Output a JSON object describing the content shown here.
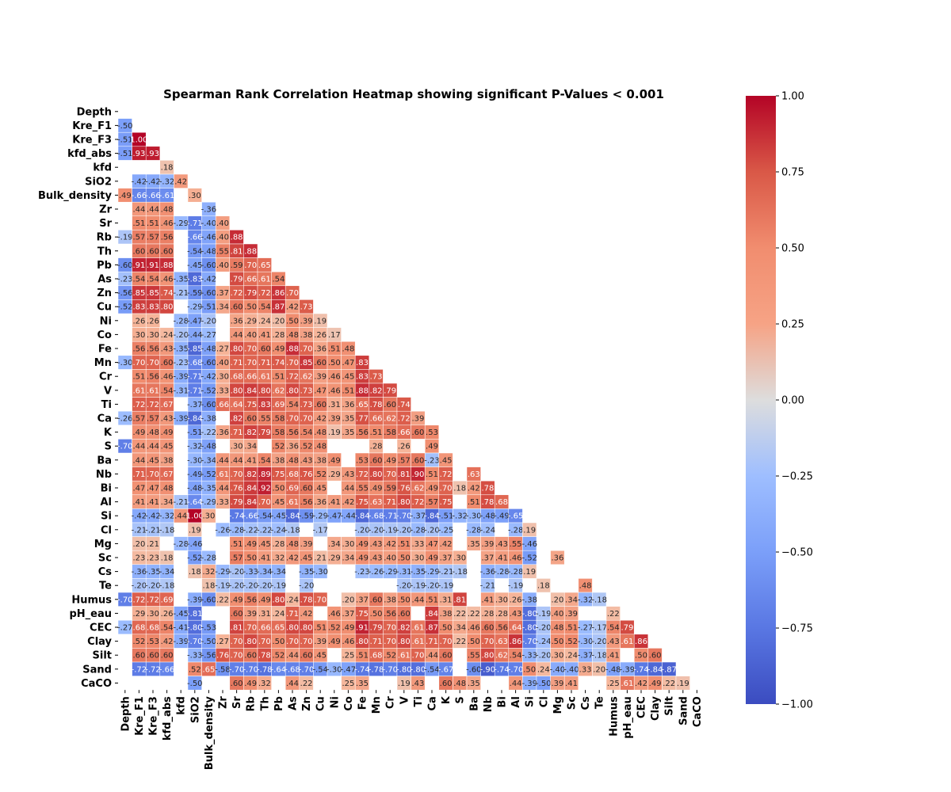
{
  "chart_data": {
    "type": "heatmap",
    "title": "Spearman Rank Correlation Heatmap showing significant P-Values < 0.001",
    "variables": [
      "Depth",
      "Kre_F1",
      "Kre_F3",
      "kfd_abs",
      "kfd",
      "SiO2",
      "Bulk_density",
      "Zr",
      "Sr",
      "Rb",
      "Th",
      "Pb",
      "As",
      "Zn",
      "Cu",
      "Ni",
      "Co",
      "Fe",
      "Mn",
      "Cr",
      "V",
      "Ti",
      "Ca",
      "K",
      "S",
      "Ba",
      "Nb",
      "Bi",
      "Al",
      "Si",
      "Cl",
      "Mg",
      "Sc",
      "Cs",
      "Te",
      "Humus",
      "pH_eau",
      "CEC",
      "Clay",
      "Silt",
      "Sand",
      "CaCO"
    ],
    "mask": "upper-triangle",
    "colormap": "coolwarm",
    "vmin": -1,
    "vmax": 1,
    "colorbar_ticks": [
      "1.00",
      "0.75",
      "0.50",
      "0.25",
      "0.00",
      "−0.25",
      "−0.50",
      "−0.75",
      "−1.00"
    ],
    "colorbar_tick_values": [
      1.0,
      0.75,
      0.5,
      0.25,
      0.0,
      -0.25,
      -0.5,
      -0.75,
      -1.0
    ],
    "value_format": "2dp-no-leading-zero",
    "rows": [
      [],
      [
        -0.5
      ],
      [
        -0.51,
        1.0
      ],
      [
        -0.51,
        0.93,
        0.93
      ],
      [
        null,
        null,
        null,
        0.18
      ],
      [
        null,
        -0.42,
        -0.42,
        -0.32,
        0.42
      ],
      [
        0.49,
        -0.66,
        -0.66,
        -0.61,
        null,
        0.3
      ],
      [
        null,
        0.44,
        0.44,
        0.48,
        null,
        null,
        -0.36
      ],
      [
        null,
        0.51,
        0.51,
        0.46,
        -0.29,
        -0.71,
        -0.4,
        0.4
      ],
      [
        -0.19,
        0.57,
        0.57,
        0.56,
        null,
        -0.66,
        -0.46,
        0.4,
        0.88
      ],
      [
        null,
        0.6,
        0.6,
        0.6,
        null,
        -0.54,
        -0.48,
        0.55,
        0.81,
        0.88
      ],
      [
        -0.6,
        0.91,
        0.91,
        0.88,
        null,
        -0.45,
        -0.6,
        0.4,
        0.59,
        0.7,
        0.65
      ],
      [
        -0.23,
        0.54,
        0.54,
        0.46,
        -0.35,
        -0.83,
        -0.42,
        null,
        0.79,
        0.66,
        0.61,
        0.54
      ],
      [
        -0.56,
        0.85,
        0.85,
        0.74,
        -0.21,
        -0.59,
        -0.6,
        0.37,
        0.72,
        0.79,
        0.72,
        0.86,
        0.7
      ],
      [
        -0.52,
        0.83,
        0.83,
        0.8,
        null,
        -0.29,
        -0.51,
        0.34,
        0.6,
        0.5,
        0.54,
        0.87,
        0.42,
        0.73
      ],
      [
        null,
        0.26,
        0.26,
        null,
        -0.28,
        -0.47,
        -0.2,
        null,
        0.36,
        0.29,
        0.24,
        0.2,
        0.5,
        0.39,
        0.19
      ],
      [
        null,
        0.3,
        0.3,
        0.24,
        -0.2,
        -0.44,
        -0.27,
        null,
        0.44,
        0.4,
        0.41,
        0.28,
        0.48,
        0.38,
        0.26,
        0.17
      ],
      [
        null,
        0.56,
        0.56,
        0.43,
        -0.35,
        -0.85,
        -0.48,
        0.27,
        0.8,
        0.7,
        0.6,
        0.49,
        0.88,
        0.7,
        0.36,
        0.51,
        0.48
      ],
      [
        -0.3,
        0.7,
        0.7,
        0.6,
        -0.23,
        -0.68,
        -0.6,
        0.4,
        0.71,
        0.7,
        0.71,
        0.74,
        0.7,
        0.85,
        0.6,
        0.5,
        0.47,
        0.83
      ],
      [
        null,
        0.51,
        0.56,
        0.46,
        -0.39,
        -0.71,
        -0.42,
        0.3,
        0.68,
        0.66,
        0.61,
        0.51,
        0.72,
        0.62,
        0.39,
        0.46,
        0.45,
        0.83,
        0.73
      ],
      [
        null,
        0.61,
        0.61,
        0.54,
        -0.31,
        -0.71,
        -0.52,
        0.33,
        0.8,
        0.84,
        0.8,
        0.62,
        0.8,
        0.73,
        0.47,
        0.46,
        0.51,
        0.88,
        0.82,
        0.79
      ],
      [
        null,
        0.72,
        0.72,
        0.67,
        null,
        -0.37,
        -0.6,
        0.66,
        0.64,
        0.75,
        0.83,
        0.69,
        0.54,
        0.73,
        0.6,
        0.31,
        0.36,
        0.65,
        0.78,
        0.6,
        0.74
      ],
      [
        -0.26,
        0.57,
        0.57,
        0.43,
        -0.39,
        -0.84,
        -0.38,
        null,
        0.82,
        0.6,
        0.55,
        0.58,
        0.7,
        0.7,
        0.42,
        0.39,
        0.35,
        0.77,
        0.66,
        0.62,
        0.72,
        0.39
      ],
      [
        null,
        0.49,
        0.48,
        0.49,
        null,
        -0.51,
        -0.22,
        0.36,
        0.71,
        0.82,
        0.79,
        0.58,
        0.56,
        0.54,
        0.48,
        0.19,
        0.35,
        0.56,
        0.51,
        0.58,
        0.66,
        0.6,
        0.53
      ],
      [
        -0.7,
        0.44,
        0.44,
        0.45,
        null,
        -0.32,
        -0.48,
        null,
        0.3,
        0.34,
        null,
        0.52,
        0.36,
        0.52,
        0.48,
        null,
        null,
        null,
        0.28,
        null,
        0.26,
        null,
        0.49
      ],
      [
        null,
        0.44,
        0.45,
        0.38,
        null,
        -0.3,
        -0.34,
        0.44,
        0.44,
        0.41,
        0.54,
        0.38,
        0.48,
        0.43,
        0.38,
        0.49,
        null,
        0.53,
        0.6,
        0.49,
        0.57,
        0.6,
        -0.23,
        0.45
      ],
      [
        null,
        0.71,
        0.7,
        0.67,
        null,
        -0.49,
        -0.52,
        0.61,
        0.7,
        0.82,
        0.89,
        0.75,
        0.68,
        0.76,
        0.52,
        0.29,
        0.43,
        0.72,
        0.8,
        0.7,
        0.81,
        0.9,
        0.51,
        0.72,
        null,
        0.63
      ],
      [
        null,
        0.47,
        0.47,
        0.48,
        null,
        -0.48,
        -0.35,
        0.44,
        0.76,
        0.84,
        0.92,
        0.5,
        0.69,
        0.6,
        0.45,
        null,
        0.44,
        0.55,
        0.49,
        0.59,
        0.76,
        0.62,
        0.49,
        0.7,
        0.18,
        0.42,
        0.78
      ],
      [
        null,
        0.41,
        0.41,
        0.34,
        -0.21,
        -0.64,
        -0.29,
        0.33,
        0.79,
        0.84,
        0.7,
        0.45,
        0.61,
        0.56,
        0.36,
        0.41,
        0.42,
        0.75,
        0.63,
        0.71,
        0.8,
        0.72,
        0.57,
        0.75,
        null,
        0.51,
        0.78,
        0.68
      ],
      [
        null,
        -0.42,
        -0.42,
        -0.32,
        0.44,
        1.0,
        0.3,
        null,
        -0.74,
        -0.66,
        -0.54,
        -0.45,
        -0.84,
        -0.59,
        -0.29,
        -0.47,
        -0.44,
        -0.84,
        -0.68,
        -0.71,
        -0.7,
        -0.37,
        -0.84,
        -0.51,
        -0.32,
        -0.3,
        -0.48,
        -0.49,
        -0.65
      ],
      [
        null,
        -0.21,
        -0.21,
        -0.18,
        null,
        0.19,
        null,
        -0.26,
        -0.28,
        -0.22,
        -0.22,
        -0.24,
        -0.18,
        null,
        -0.17,
        null,
        null,
        -0.2,
        -0.2,
        -0.19,
        -0.2,
        -0.28,
        -0.2,
        -0.25,
        null,
        -0.28,
        -0.24,
        null,
        -0.28,
        0.19
      ],
      [
        null,
        0.2,
        0.21,
        null,
        -0.28,
        -0.46,
        null,
        null,
        0.51,
        0.49,
        0.45,
        0.28,
        0.48,
        0.39,
        null,
        0.34,
        0.3,
        0.49,
        0.43,
        0.42,
        0.51,
        0.33,
        0.47,
        0.42,
        null,
        0.35,
        0.39,
        0.43,
        0.55,
        -0.46
      ],
      [
        null,
        0.23,
        0.23,
        0.18,
        null,
        -0.52,
        -0.28,
        null,
        0.57,
        0.5,
        0.41,
        0.32,
        0.42,
        0.45,
        0.21,
        0.29,
        0.34,
        0.49,
        0.43,
        0.4,
        0.5,
        0.3,
        0.49,
        0.37,
        0.3,
        null,
        0.37,
        0.41,
        0.46,
        -0.52,
        null,
        0.36
      ],
      [
        null,
        -0.36,
        -0.35,
        -0.34,
        null,
        0.18,
        0.32,
        -0.29,
        -0.2,
        -0.33,
        -0.34,
        -0.34,
        null,
        -0.35,
        -0.3,
        null,
        null,
        -0.23,
        -0.26,
        -0.29,
        -0.31,
        -0.35,
        -0.29,
        -0.21,
        -0.18,
        null,
        -0.36,
        -0.28,
        -0.28,
        0.19
      ],
      [
        null,
        -0.2,
        -0.2,
        -0.18,
        null,
        null,
        0.18,
        -0.19,
        -0.2,
        -0.2,
        -0.2,
        -0.19,
        null,
        -0.2,
        null,
        null,
        null,
        null,
        null,
        null,
        -0.2,
        -0.19,
        -0.2,
        -0.19,
        null,
        null,
        -0.21,
        null,
        -0.19,
        null,
        0.18,
        null,
        null,
        0.48
      ],
      [
        -0.7,
        0.72,
        0.72,
        0.69,
        null,
        -0.39,
        -0.6,
        0.22,
        0.49,
        0.56,
        0.49,
        0.8,
        0.24,
        0.78,
        0.7,
        null,
        0.2,
        0.37,
        0.6,
        0.38,
        0.5,
        0.44,
        0.51,
        0.31,
        0.81,
        null,
        0.41,
        0.3,
        0.26,
        -0.38,
        null,
        0.2,
        0.34,
        -0.32,
        -0.18
      ],
      [
        null,
        0.29,
        0.3,
        0.26,
        -0.45,
        -0.81,
        null,
        null,
        0.6,
        0.39,
        0.31,
        0.24,
        0.71,
        0.42,
        null,
        0.46,
        0.37,
        0.75,
        0.5,
        0.56,
        0.6,
        null,
        0.84,
        0.38,
        0.22,
        0.22,
        0.28,
        0.28,
        0.43,
        -0.8,
        -0.19,
        0.4,
        0.39,
        null,
        null,
        0.22
      ],
      [
        -0.27,
        0.68,
        0.68,
        0.54,
        -0.41,
        -0.8,
        -0.53,
        null,
        0.81,
        0.7,
        0.66,
        0.65,
        0.8,
        0.8,
        0.51,
        0.52,
        0.49,
        0.91,
        0.79,
        0.7,
        0.82,
        0.61,
        0.87,
        0.5,
        0.34,
        0.46,
        0.6,
        0.56,
        0.64,
        -0.8,
        -0.2,
        0.48,
        0.51,
        -0.27,
        -0.17,
        0.54,
        0.79
      ],
      [
        null,
        0.52,
        0.53,
        0.42,
        -0.39,
        -0.7,
        -0.5,
        0.27,
        0.7,
        0.8,
        0.7,
        0.5,
        0.7,
        0.7,
        0.39,
        0.49,
        0.46,
        0.8,
        0.71,
        0.7,
        0.8,
        0.61,
        0.71,
        0.7,
        0.22,
        0.5,
        0.7,
        0.63,
        0.86,
        -0.7,
        -0.24,
        0.5,
        0.52,
        -0.3,
        -0.2,
        0.43,
        0.61,
        0.86
      ],
      [
        null,
        0.6,
        0.6,
        0.6,
        null,
        -0.33,
        -0.56,
        0.76,
        0.7,
        0.6,
        0.78,
        0.52,
        0.44,
        0.6,
        0.45,
        null,
        0.25,
        0.51,
        0.68,
        0.52,
        0.61,
        0.7,
        0.44,
        0.6,
        null,
        0.55,
        0.8,
        0.62,
        0.54,
        -0.33,
        -0.2,
        0.3,
        0.24,
        -0.37,
        -0.18,
        0.41,
        null,
        0.5,
        0.6
      ],
      [
        null,
        -0.72,
        -0.72,
        -0.66,
        null,
        0.52,
        0.65,
        -0.58,
        -0.7,
        -0.7,
        -0.78,
        -0.64,
        -0.68,
        -0.7,
        -0.54,
        -0.3,
        -0.47,
        -0.74,
        -0.78,
        -0.7,
        -0.8,
        -0.8,
        -0.54,
        -0.67,
        null,
        -0.6,
        -0.9,
        -0.74,
        -0.7,
        0.5,
        0.24,
        -0.4,
        -0.4,
        0.33,
        0.2,
        -0.48,
        -0.39,
        -0.74,
        -0.84,
        -0.87
      ],
      [
        null,
        null,
        null,
        null,
        null,
        -0.5,
        null,
        null,
        0.6,
        0.49,
        0.32,
        null,
        0.44,
        0.22,
        null,
        null,
        0.25,
        0.35,
        null,
        null,
        0.19,
        0.43,
        null,
        0.6,
        0.48,
        0.35,
        null,
        null,
        0.44,
        -0.39,
        -0.5,
        0.39,
        0.41,
        null,
        null,
        0.25,
        0.61,
        0.42,
        0.49,
        0.22,
        0.19
      ]
    ]
  }
}
